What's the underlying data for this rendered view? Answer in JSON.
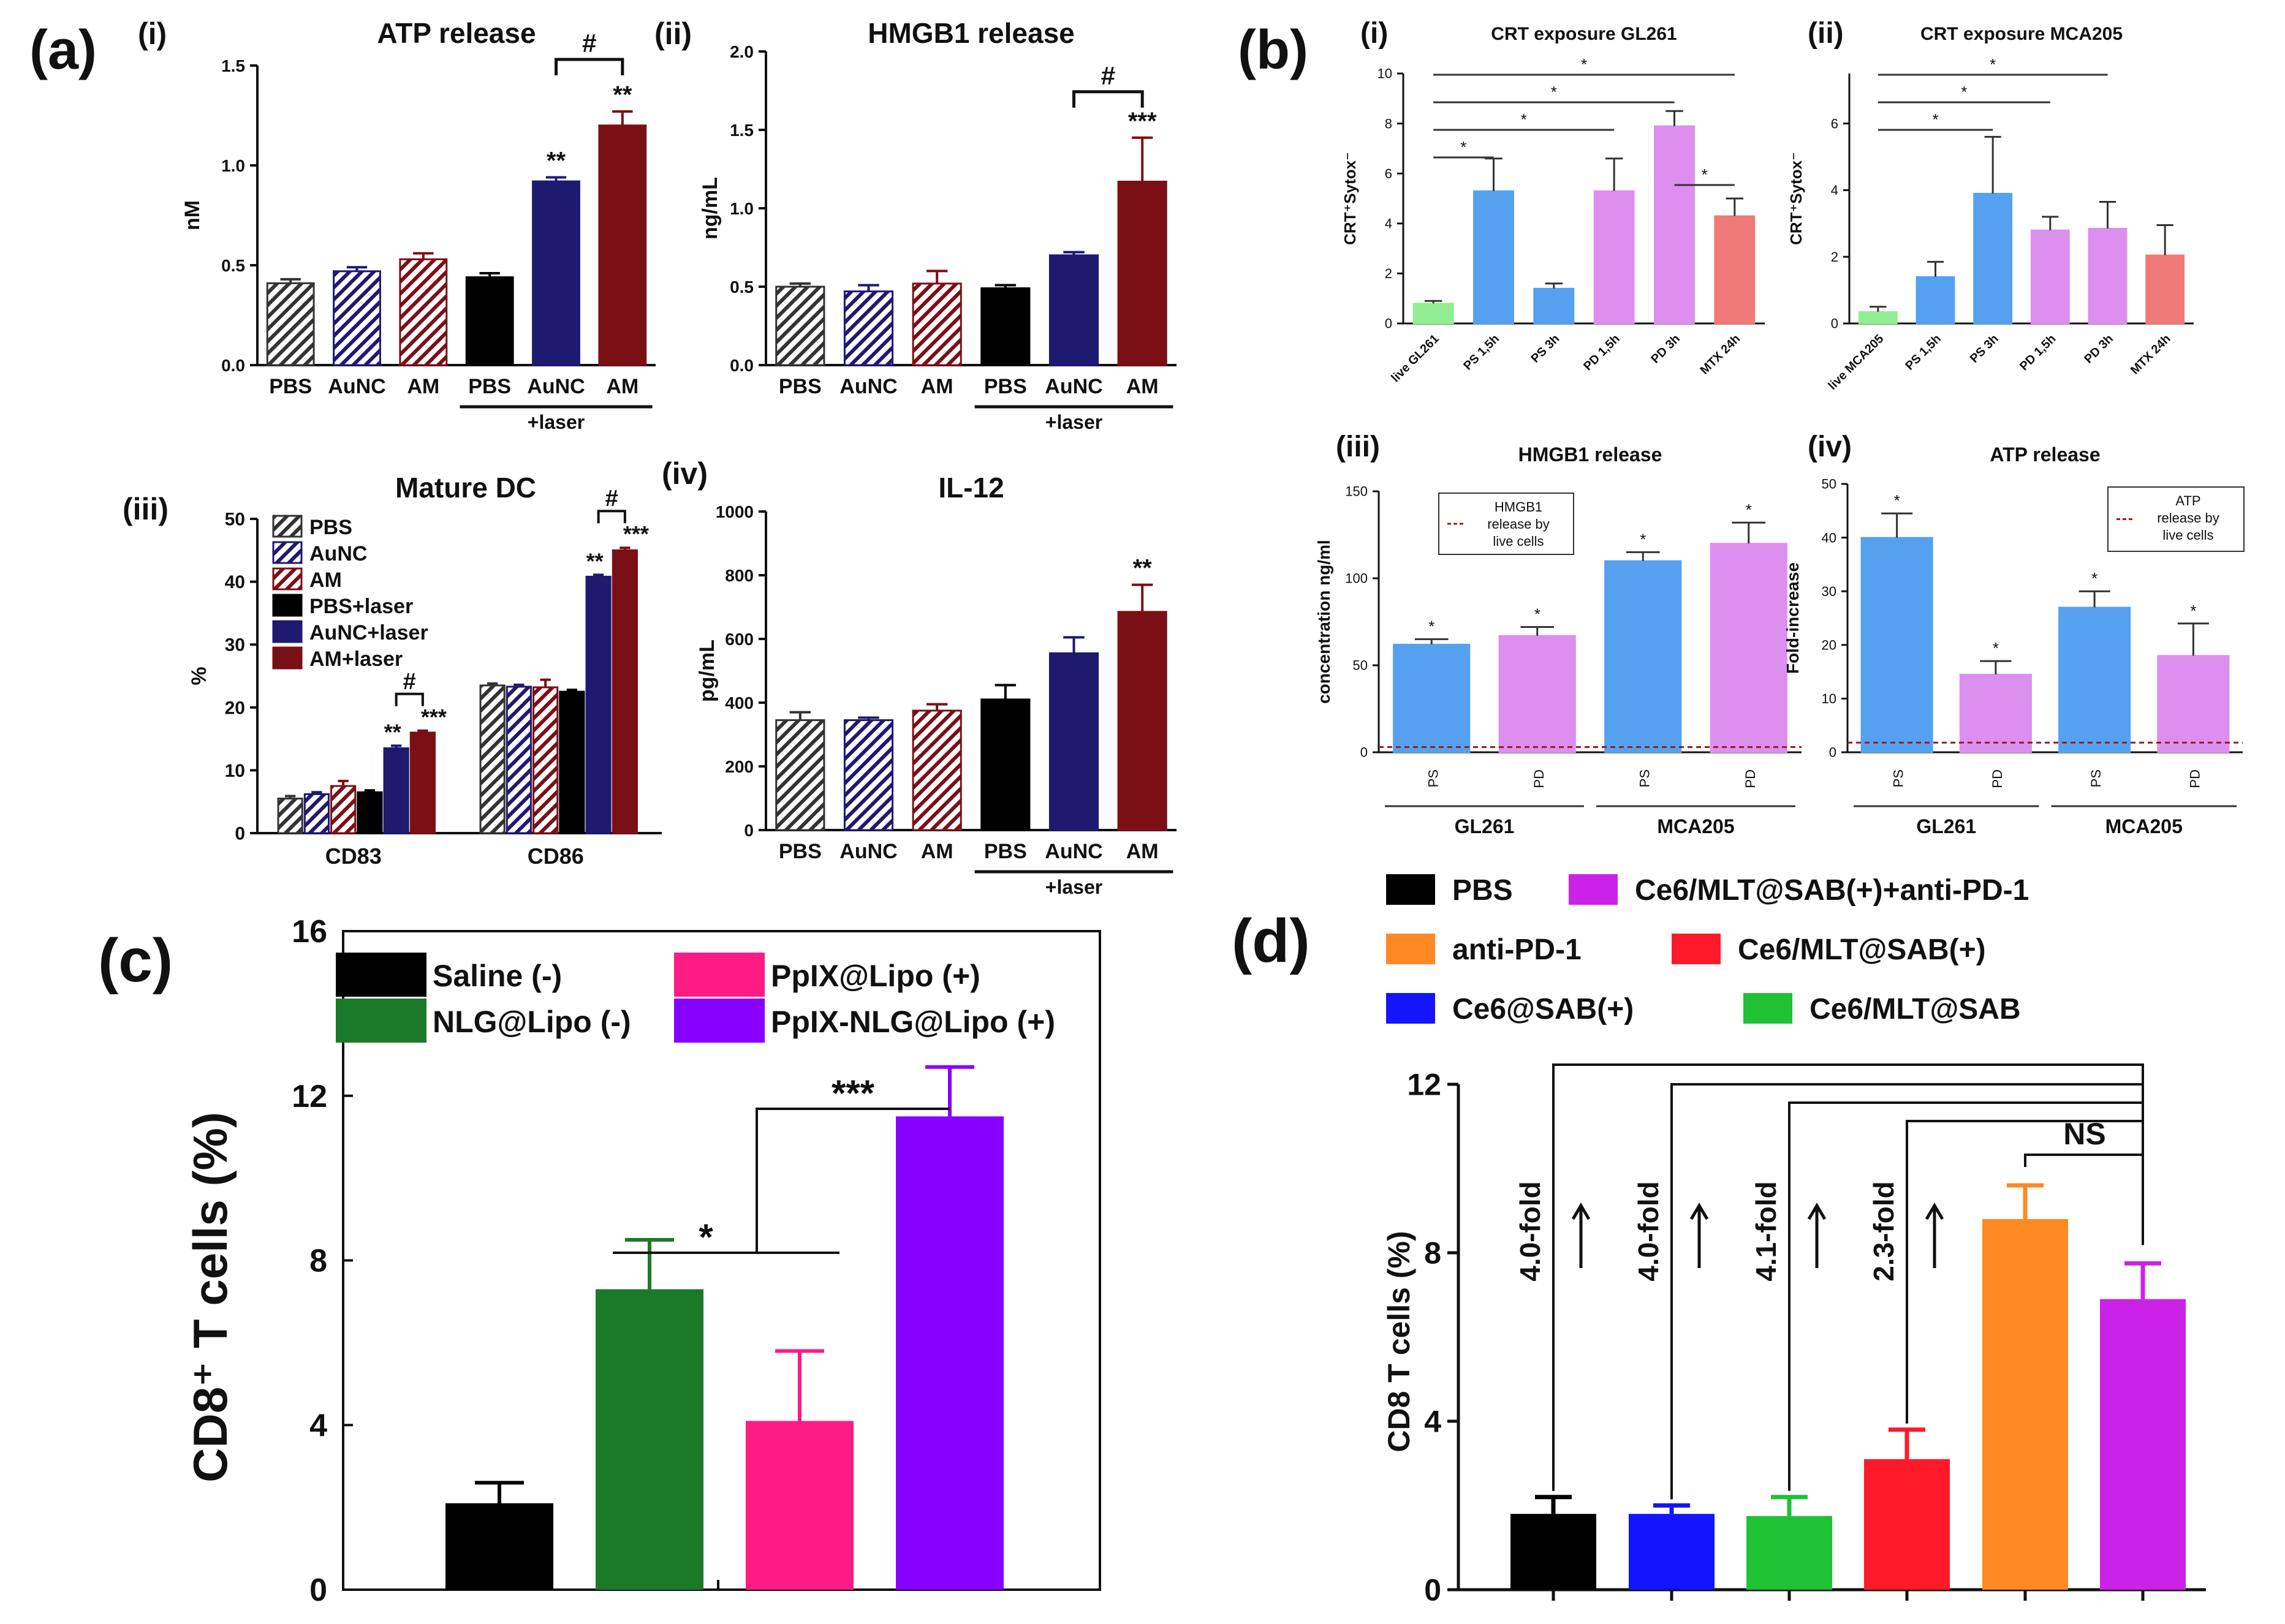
{
  "colors": {
    "grey": "#333333",
    "navy": "#1e1a70",
    "maroon": "#7a1016",
    "black": "#000000",
    "lgreen": "#90ee90",
    "blue": "#55a1f0",
    "pink": "#dd8ff0",
    "salmon": "#f07a78",
    "dgreen": "#1b7a2a",
    "magenta": "#ff1b84",
    "violet": "#8800ff",
    "orange": "#ff8a24",
    "red": "#ff1a2a",
    "royal": "#1414ff",
    "green": "#1ec234",
    "purple": "#cc22e8",
    "refline": "#9a1c1c"
  },
  "panel_letters": {
    "a": "(a)",
    "b": "(b)",
    "c": "(c)",
    "d": "(d)"
  },
  "subpanel_labels": {
    "i": "(i)",
    "ii": "(ii)",
    "iii": "(iii)",
    "iv": "(iv)"
  },
  "laser_label": "+laser",
  "chart_data": [
    {
      "id": "a1",
      "type": "bar",
      "title": "ATP release",
      "ylabel": "nM",
      "ylim": [
        0,
        1.5
      ],
      "yticks": [
        "0.0",
        "0.5",
        "1.0",
        "1.5"
      ],
      "categories": [
        "PBS",
        "AuNC",
        "AM",
        "PBS",
        "AuNC",
        "AM"
      ],
      "values": [
        0.41,
        0.47,
        0.53,
        0.44,
        0.92,
        1.2
      ],
      "errors": [
        0.02,
        0.02,
        0.03,
        0.02,
        0.02,
        0.07
      ],
      "fills": [
        "hatch-grey",
        "hatch-navy",
        "hatch-maroon",
        "black",
        "navy",
        "maroon"
      ],
      "annotations": [
        "",
        "",
        "",
        "",
        "**",
        "**"
      ],
      "bracket": {
        "from": 4,
        "to": 5,
        "label": "#"
      }
    },
    {
      "id": "a2",
      "type": "bar",
      "title": "HMGB1 release",
      "ylabel": "ng/mL",
      "ylim": [
        0,
        2.0
      ],
      "yticks": [
        "0.0",
        "0.5",
        "1.0",
        "1.5",
        "2.0"
      ],
      "categories": [
        "PBS",
        "AuNC",
        "AM",
        "PBS",
        "AuNC",
        "AM"
      ],
      "values": [
        0.5,
        0.47,
        0.52,
        0.49,
        0.7,
        1.17
      ],
      "errors": [
        0.02,
        0.04,
        0.08,
        0.02,
        0.02,
        0.28
      ],
      "fills": [
        "hatch-grey",
        "hatch-navy",
        "hatch-maroon",
        "black",
        "navy",
        "maroon"
      ],
      "annotations": [
        "",
        "",
        "",
        "",
        "",
        "***"
      ],
      "bracket": {
        "from": 4,
        "to": 5,
        "label": "#"
      }
    },
    {
      "id": "a3",
      "type": "bar",
      "title": "Mature DC",
      "ylabel": "%",
      "ylim": [
        0,
        50
      ],
      "yticks": [
        "0",
        "10",
        "20",
        "30",
        "40",
        "50"
      ],
      "groups": [
        "CD83",
        "CD86"
      ],
      "series": [
        {
          "name": "PBS",
          "fill": "hatch-grey",
          "values": [
            5.5,
            23.5
          ],
          "errors": [
            0.4,
            0.3
          ],
          "ann": [
            "",
            ""
          ]
        },
        {
          "name": "AuNC",
          "fill": "hatch-navy",
          "values": [
            6.2,
            23.3
          ],
          "errors": [
            0.3,
            0.3
          ],
          "ann": [
            "",
            ""
          ]
        },
        {
          "name": "AM",
          "fill": "hatch-maroon",
          "values": [
            7.5,
            23.2
          ],
          "errors": [
            0.8,
            1.2
          ],
          "ann": [
            "",
            ""
          ]
        },
        {
          "name": "PBS+laser",
          "fill": "black",
          "values": [
            6.5,
            22.5
          ],
          "errors": [
            0.3,
            0.3
          ],
          "ann": [
            "",
            ""
          ]
        },
        {
          "name": "AuNC+laser",
          "fill": "navy",
          "values": [
            13.5,
            40.8
          ],
          "errors": [
            0.4,
            0.3
          ],
          "ann": [
            "**",
            "**"
          ]
        },
        {
          "name": "AM+laser",
          "fill": "maroon",
          "values": [
            16.0,
            45.0
          ],
          "errors": [
            0.3,
            0.4
          ],
          "ann": [
            "***",
            "***"
          ]
        }
      ],
      "brackets": [
        {
          "group": 0,
          "label": "#"
        },
        {
          "group": 1,
          "label": "#"
        }
      ]
    },
    {
      "id": "a4",
      "type": "bar",
      "title": "IL-12",
      "ylabel": "pg/mL",
      "ylim": [
        0,
        1000
      ],
      "yticks": [
        "0",
        "200",
        "400",
        "600",
        "800",
        "1000"
      ],
      "categories": [
        "PBS",
        "AuNC",
        "AM",
        "PBS",
        "AuNC",
        "AM"
      ],
      "values": [
        345,
        345,
        375,
        410,
        555,
        685
      ],
      "errors": [
        25,
        8,
        20,
        45,
        50,
        85
      ],
      "fills": [
        "hatch-grey",
        "hatch-navy",
        "hatch-maroon",
        "black",
        "navy",
        "maroon"
      ],
      "annotations": [
        "",
        "",
        "",
        "",
        "",
        "**"
      ]
    },
    {
      "id": "b1",
      "type": "bar",
      "title": "CRT exposure GL261",
      "ylabel": "CRT⁺Sytox⁻",
      "ylim": [
        0,
        10
      ],
      "yticks": [
        "0",
        "2",
        "4",
        "6",
        "8",
        "10"
      ],
      "categories": [
        "live GL261",
        "PS 1,5h",
        "PS 3h",
        "PD 1,5h",
        "PD 3h",
        "MTX 24h"
      ],
      "values": [
        0.8,
        5.3,
        1.4,
        5.3,
        7.9,
        4.3
      ],
      "errors": [
        0.1,
        1.3,
        0.2,
        1.3,
        0.6,
        0.7
      ],
      "fills": [
        "lgreen",
        "blue",
        "blue",
        "pink",
        "pink",
        "salmon"
      ],
      "sig_lines": [
        [
          0,
          5
        ],
        [
          0,
          4
        ],
        [
          0,
          3
        ],
        [
          0,
          1
        ],
        [
          4,
          5
        ]
      ],
      "sig_label": "*"
    },
    {
      "id": "b2",
      "type": "bar",
      "title": "CRT exposure MCA205",
      "ylabel": "CRT⁺Sytox⁻",
      "ylim": [
        0,
        7.5
      ],
      "yticks": [
        "0",
        "2",
        "4",
        "6"
      ],
      "categories": [
        "live MCA205",
        "PS 1,5h",
        "PS 3h",
        "PD 1,5h",
        "PD 3h",
        "MTX 24h"
      ],
      "values": [
        0.35,
        1.4,
        3.9,
        2.8,
        2.85,
        2.05
      ],
      "errors": [
        0.15,
        0.45,
        1.7,
        0.4,
        0.8,
        0.9
      ],
      "fills": [
        "lgreen",
        "blue",
        "blue",
        "pink",
        "pink",
        "salmon"
      ],
      "sig_lines": [
        [
          0,
          4
        ],
        [
          0,
          3
        ],
        [
          0,
          2
        ]
      ],
      "sig_label": "*"
    },
    {
      "id": "b3",
      "type": "bar",
      "title": "HMGB1 release",
      "ylabel": "concentration ng/ml",
      "ylim": [
        0,
        150
      ],
      "yticks": [
        "0",
        "50",
        "100",
        "150"
      ],
      "categories": [
        "PS",
        "PD",
        "PS",
        "PD"
      ],
      "groups": [
        "GL261",
        "MCA205"
      ],
      "values": [
        62,
        67,
        110,
        120
      ],
      "errors": [
        3,
        5,
        5,
        12
      ],
      "fills": [
        "blue",
        "pink",
        "blue",
        "pink"
      ],
      "annotations": [
        "*",
        "*",
        "*",
        "*"
      ],
      "reference": {
        "value": 3,
        "label": [
          "HMGB1",
          "release by",
          "live cells"
        ]
      }
    },
    {
      "id": "b4",
      "type": "bar",
      "title": "ATP release",
      "ylabel": "Fold-increase",
      "ylim": [
        0,
        50
      ],
      "yticks": [
        "0",
        "10",
        "20",
        "30",
        "40",
        "50"
      ],
      "categories": [
        "PS",
        "PD",
        "PS",
        "PD"
      ],
      "groups": [
        "GL261",
        "MCA205"
      ],
      "values": [
        40,
        14.5,
        27,
        18
      ],
      "errors": [
        4.5,
        2.5,
        3,
        6
      ],
      "fills": [
        "blue",
        "pink",
        "blue",
        "pink"
      ],
      "annotations": [
        "*",
        "*",
        "*",
        "*"
      ],
      "reference": {
        "value": 1.8,
        "label": [
          "ATP",
          "release by",
          "live cells"
        ]
      }
    },
    {
      "id": "c",
      "type": "bar",
      "ylabel": "CD8⁺ T cells (%)",
      "ylim": [
        0,
        16
      ],
      "yticks": [
        "0",
        "4",
        "8",
        "12",
        "16"
      ],
      "categories": [
        "Saline (-)",
        "NLG@Lipo (-)",
        "PpIX@Lipo (+)",
        "PpIX-NLG@Lipo (+)"
      ],
      "values": [
        2.1,
        7.3,
        4.1,
        11.5
      ],
      "errors": [
        0.5,
        1.2,
        1.7,
        1.2
      ],
      "fills": [
        "black",
        "dgreen",
        "magenta",
        "violet"
      ],
      "sig": [
        {
          "label": "*"
        },
        {
          "label": "***"
        }
      ]
    },
    {
      "id": "d",
      "type": "bar",
      "ylabel": "CD8 T cells (%)",
      "ylim": [
        0,
        12
      ],
      "yticks": [
        "0",
        "4",
        "8",
        "12"
      ],
      "categories": [
        "PBS",
        "Ce6@SAB(+)",
        "Ce6/MLT@SAB",
        "Ce6/MLT@SAB(+)",
        "anti-PD-1",
        "Ce6/MLT@SAB(+)+anti-PD-1"
      ],
      "legend": [
        "PBS",
        "Ce6/MLT@SAB(+)+anti-PD-1",
        "anti-PD-1",
        "Ce6/MLT@SAB(+)",
        "Ce6@SAB(+)",
        "Ce6/MLT@SAB"
      ],
      "values": [
        1.8,
        1.8,
        1.75,
        3.1,
        8.8,
        6.9
      ],
      "errors": [
        0.4,
        0.2,
        0.45,
        0.7,
        0.8,
        0.85
      ],
      "fills": [
        "black",
        "royal",
        "green",
        "red",
        "orange",
        "purple"
      ],
      "fold_labels": [
        "4.0-fold",
        "4.0-fold",
        "4.1-fold",
        "2.3-fold"
      ],
      "ns_label": "NS"
    }
  ]
}
